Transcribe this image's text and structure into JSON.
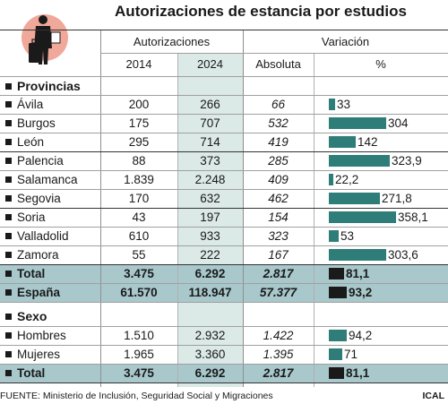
{
  "title": "Autorizaciones de estancia por estudios",
  "headers": {
    "group1": "Autorizaciones",
    "group2": "Variación",
    "y2014": "2014",
    "y2024": "2024",
    "absoluta": "Absoluta",
    "pct": "%"
  },
  "sections": {
    "provincias": "Provincias",
    "sexo": "Sexo"
  },
  "colors": {
    "bar": "#2e7d78",
    "bar_total": "#1a1a1a",
    "highlight_col": "#dbe9e7",
    "total_band": "#a8c8cc",
    "icon_circle": "#f0a89a"
  },
  "icon": "person-with-suitcase-icon",
  "footer": "FUENTE: Ministerio de Inclusión, Seguridad Social y Migraciones",
  "credit": "ICAL",
  "chart_data": {
    "type": "table",
    "columns": [
      "2014",
      "2024",
      "Absoluta",
      "%"
    ],
    "rows": [
      {
        "label": "Ávila",
        "y2014": "200",
        "y2024": "266",
        "abs": "66",
        "pct": "33",
        "pct_value": 33
      },
      {
        "label": "Burgos",
        "y2014": "175",
        "y2024": "707",
        "abs": "532",
        "pct": "304",
        "pct_value": 304
      },
      {
        "label": "León",
        "y2014": "295",
        "y2024": "714",
        "abs": "419",
        "pct": "142",
        "pct_value": 142
      },
      {
        "label": "Palencia",
        "y2014": "88",
        "y2024": "373",
        "abs": "285",
        "pct": "323,9",
        "pct_value": 323.9
      },
      {
        "label": "Salamanca",
        "y2014": "1.839",
        "y2024": "2.248",
        "abs": "409",
        "pct": "22,2",
        "pct_value": 22.2
      },
      {
        "label": "Segovia",
        "y2014": "170",
        "y2024": "632",
        "abs": "462",
        "pct": "271,8",
        "pct_value": 271.8
      },
      {
        "label": "Soria",
        "y2014": "43",
        "y2024": "197",
        "abs": "154",
        "pct": "358,1",
        "pct_value": 358.1
      },
      {
        "label": "Valladolid",
        "y2014": "610",
        "y2024": "933",
        "abs": "323",
        "pct": "53",
        "pct_value": 53
      },
      {
        "label": "Zamora",
        "y2014": "55",
        "y2024": "222",
        "abs": "167",
        "pct": "303,6",
        "pct_value": 303.6
      },
      {
        "label": "Total",
        "y2014": "3.475",
        "y2024": "6.292",
        "abs": "2.817",
        "pct": "81,1",
        "pct_value": 81.1,
        "total": true
      },
      {
        "label": "España",
        "y2014": "61.570",
        "y2024": "118.947",
        "abs": "57.377",
        "pct": "93,2",
        "pct_value": 93.2,
        "total": true
      },
      {
        "label": "Hombres",
        "y2014": "1.510",
        "y2024": "2.932",
        "abs": "1.422",
        "pct": "94,2",
        "pct_value": 94.2
      },
      {
        "label": "Mujeres",
        "y2014": "1.965",
        "y2024": "3.360",
        "abs": "1.395",
        "pct": "71",
        "pct_value": 71
      },
      {
        "label": "Total",
        "y2014": "3.475",
        "y2024": "6.292",
        "abs": "2.817",
        "pct": "81,1",
        "pct_value": 81.1,
        "total": true
      }
    ]
  }
}
